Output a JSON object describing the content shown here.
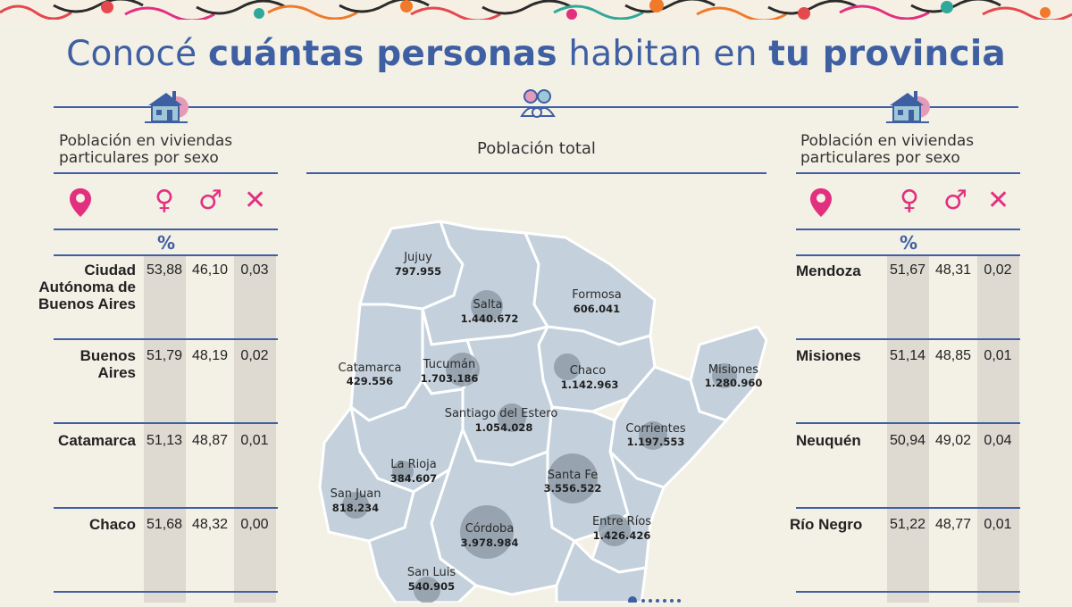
{
  "title": {
    "part1": "Conocé ",
    "bold1": "cuántas personas",
    "part2": " habitan en ",
    "bold2": "tu provincia"
  },
  "left_panel": {
    "heading_line1": "Población en viviendas",
    "heading_line2": "particulares por sexo",
    "unit": "%",
    "icons": [
      "location-pin-icon",
      "female-icon",
      "male-icon",
      "x-icon"
    ],
    "rows": [
      {
        "name": [
          "Ciudad",
          "Autónoma de",
          "Buenos Aires"
        ],
        "female": "53,88",
        "male": "46,10",
        "x": "0,03"
      },
      {
        "name": [
          "Buenos",
          "Aires"
        ],
        "female": "51,79",
        "male": "48,19",
        "x": "0,02"
      },
      {
        "name": [
          "Catamarca"
        ],
        "female": "51,13",
        "male": "48,87",
        "x": "0,01"
      },
      {
        "name": [
          "Chaco"
        ],
        "female": "51,68",
        "male": "48,32",
        "x": "0,00"
      }
    ]
  },
  "right_panel": {
    "heading_line1": "Población en viviendas",
    "heading_line2": "particulares por sexo",
    "unit": "%",
    "icons": [
      "location-pin-icon",
      "female-icon",
      "male-icon",
      "x-icon"
    ],
    "rows": [
      {
        "name": [
          "Mendoza"
        ],
        "female": "51,67",
        "male": "48,31",
        "x": "0,02"
      },
      {
        "name": [
          "Misiones"
        ],
        "female": "51,14",
        "male": "48,85",
        "x": "0,01"
      },
      {
        "name": [
          "Neuquén"
        ],
        "female": "50,94",
        "male": "49,02",
        "x": "0,04"
      },
      {
        "name": [
          "Río Negro"
        ],
        "female": "51,22",
        "male": "48,77",
        "x": "0,01"
      }
    ]
  },
  "center_panel": {
    "heading": "Población total",
    "provinces": [
      {
        "name": "Jujuy",
        "value": "797.955"
      },
      {
        "name": "Salta",
        "value": "1.440.672"
      },
      {
        "name": "Formosa",
        "value": "606.041"
      },
      {
        "name": "Catamarca",
        "value": "429.556"
      },
      {
        "name": "Tucumán",
        "value": "1.703.186"
      },
      {
        "name": "Chaco",
        "value": "1.142.963"
      },
      {
        "name": "Misiones",
        "value": "1.280.960"
      },
      {
        "name": "Santiago del Estero",
        "value": "1.054.028"
      },
      {
        "name": "Corrientes",
        "value": "1.197.553"
      },
      {
        "name": "La Rioja",
        "value": "384.607"
      },
      {
        "name": "Santa Fe",
        "value": "3.556.522"
      },
      {
        "name": "San Juan",
        "value": "818.234"
      },
      {
        "name": "Entre Ríos",
        "value": "1.426.426"
      },
      {
        "name": "Córdoba",
        "value": "3.978.984"
      },
      {
        "name": "San Luis",
        "value": "540.905"
      }
    ]
  },
  "colors": {
    "accent_blue": "#3f5fa3",
    "symbol_pink": "#e2307f",
    "map_fill": "#c4d1dc",
    "background": "#f3f0e6"
  }
}
